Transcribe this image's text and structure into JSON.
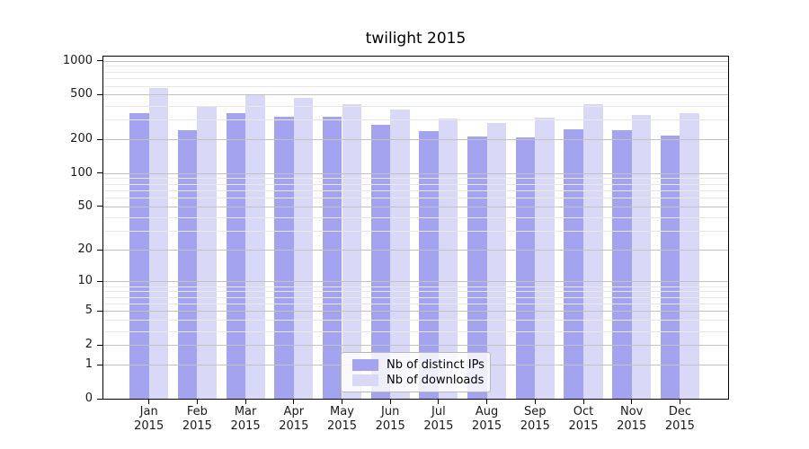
{
  "title": "twilight 2015",
  "chart_data": {
    "type": "bar",
    "title": "twilight 2015",
    "categories": [
      "Jan",
      "Feb",
      "Mar",
      "Apr",
      "May",
      "Jun",
      "Jul",
      "Aug",
      "Sep",
      "Oct",
      "Nov",
      "Dec"
    ],
    "x_tick_second_line": "2015",
    "series": [
      {
        "name": "Nb of distinct IPs",
        "color": "#a3a3f0",
        "values": [
          345,
          240,
          345,
          318,
          320,
          272,
          238,
          213,
          207,
          248,
          240,
          217
        ]
      },
      {
        "name": "Nb of downloads",
        "color": "#d9d9f7",
        "values": [
          570,
          397,
          495,
          468,
          410,
          370,
          305,
          278,
          313,
          414,
          328,
          342
        ]
      }
    ],
    "xlabel": "",
    "ylabel": "",
    "yscale": "symlog (log10 of value+1)",
    "y_ticks": [
      0,
      1,
      2,
      5,
      10,
      20,
      50,
      100,
      200,
      500,
      1000
    ],
    "y_minor_ticks": [
      3,
      4,
      6,
      7,
      8,
      9,
      30,
      40,
      60,
      70,
      80,
      90,
      300,
      400,
      600,
      700,
      800,
      900
    ],
    "ylim": [
      0,
      1100
    ],
    "grid": "horizontal major and minor, drawn above bars",
    "legend_position": "lower center inside plot"
  },
  "legend": {
    "items": [
      {
        "label": "Nb of distinct IPs",
        "color": "#a3a3f0"
      },
      {
        "label": "Nb of downloads",
        "color": "#d9d9f7"
      }
    ]
  },
  "colors": {
    "background": "#ffffff",
    "axis": "#000000",
    "grid_major": "#c2c2c2",
    "grid_minor": "#e8e8e8",
    "text": "#1a1a1a"
  }
}
